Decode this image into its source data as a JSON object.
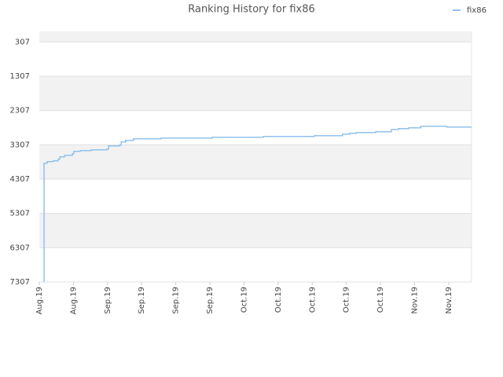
{
  "chart_data": {
    "type": "line",
    "title": "Ranking History for fix86",
    "x": [
      0.14,
      0.14,
      0.23,
      0.41,
      0.55,
      0.6,
      0.74,
      0.97,
      1.01,
      1.2,
      1.52,
      1.98,
      2.03,
      2.35,
      2.4,
      2.53,
      2.76,
      3.57,
      5.07,
      6.57,
      8.06,
      8.89,
      9.1,
      9.29,
      9.86,
      10.32,
      10.53,
      10.83,
      11.18,
      11.94,
      12.67
    ],
    "series": [
      {
        "name": "fix86",
        "color": "#90c2ee",
        "values": [
          7300,
          3844,
          3796,
          3773,
          3727,
          3659,
          3613,
          3567,
          3499,
          3476,
          3453,
          3430,
          3339,
          3316,
          3224,
          3179,
          3133,
          3110,
          3087,
          3064,
          3041,
          2996,
          2973,
          2950,
          2927,
          2858,
          2836,
          2813,
          2767,
          2790,
          2790
        ]
      }
    ],
    "xlim": [
      0,
      12.67
    ],
    "xticks": [
      {
        "value": 0,
        "label": "Aug.19"
      },
      {
        "value": 1,
        "label": "Aug.19"
      },
      {
        "value": 2,
        "label": "Sep.19"
      },
      {
        "value": 3,
        "label": "Sep.19"
      },
      {
        "value": 4,
        "label": "Sep.19"
      },
      {
        "value": 5,
        "label": "Sep.19"
      },
      {
        "value": 6,
        "label": "Oct.19"
      },
      {
        "value": 7,
        "label": "Oct.19"
      },
      {
        "value": 8,
        "label": "Oct.19"
      },
      {
        "value": 9,
        "label": "Oct.19"
      },
      {
        "value": 10,
        "label": "Oct.19"
      },
      {
        "value": 11,
        "label": "Nov.19"
      },
      {
        "value": 12,
        "label": "Nov.19"
      }
    ],
    "ylim": [
      7307,
      0
    ],
    "yticks": [
      307,
      1307,
      2307,
      3307,
      4307,
      5307,
      6307,
      7307
    ],
    "grid": true,
    "step": true,
    "legend": "top-right"
  }
}
